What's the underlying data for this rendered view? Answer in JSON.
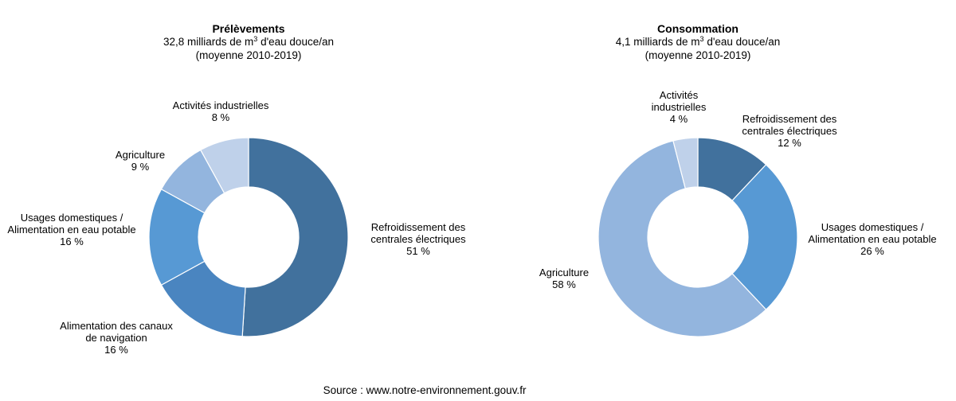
{
  "chart_data": [
    {
      "type": "pie",
      "donut": true,
      "title": "Prélèvements",
      "subtitle_prefix": "32,8 milliards de m",
      "subtitle_sup": "3",
      "subtitle_suffix": " d'eau douce/an",
      "subtitle2": "(moyenne 2010-2019)",
      "slices": [
        {
          "label": [
            "Refroidissement des",
            "centrales électriques"
          ],
          "value_label": "51 %",
          "value": 51,
          "color": "#41719d"
        },
        {
          "label": [
            "Alimentation des canaux",
            "de navigation"
          ],
          "value_label": "16 %",
          "value": 16,
          "color": "#4a85c0"
        },
        {
          "label": [
            "Usages domestiques /",
            "Alimentation en eau potable"
          ],
          "value_label": "16 %",
          "value": 16,
          "color": "#5799d4"
        },
        {
          "label": [
            "Agriculture"
          ],
          "value_label": "9 %",
          "value": 9,
          "color": "#93b5de"
        },
        {
          "label": [
            "Activités industrielles"
          ],
          "value_label": "8 %",
          "value": 8,
          "color": "#bfd1ea"
        }
      ]
    },
    {
      "type": "pie",
      "donut": true,
      "title": "Consommation",
      "subtitle_prefix": "4,1 milliards de m",
      "subtitle_sup": "3",
      "subtitle_suffix": " d'eau douce/an",
      "subtitle2": "(moyenne 2010-2019)",
      "slices": [
        {
          "label": [
            "Refroidissement des",
            "centrales électriques"
          ],
          "value_label": "12 %",
          "value": 12,
          "color": "#41719d"
        },
        {
          "label": [
            "Usages domestiques /",
            "Alimentation en eau potable"
          ],
          "value_label": "26 %",
          "value": 26,
          "color": "#5799d4"
        },
        {
          "label": [
            "Agriculture"
          ],
          "value_label": "58 %",
          "value": 58,
          "color": "#93b5de"
        },
        {
          "label": [
            "Activités",
            "industrielles"
          ],
          "value_label": "4 %",
          "value": 4,
          "color": "#bfd1ea"
        }
      ]
    }
  ],
  "source": "Source : www.notre-environnement.gouv.fr"
}
